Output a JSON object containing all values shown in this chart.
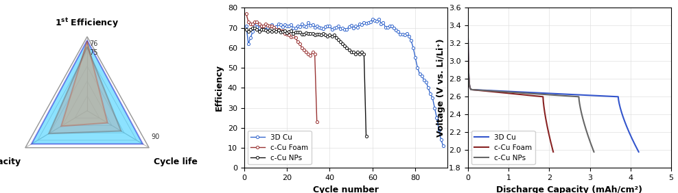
{
  "radar": {
    "color_3dcu": "#00bfff",
    "color_foam": "#f4a460",
    "color_nps": "#aaaaaa",
    "edge_3dcu": "#0000cc",
    "edge_foam": "#cc2200",
    "edge_nps": "#666666",
    "val_3dcu": [
      0.95,
      0.9,
      0.9
    ],
    "val_foam": [
      0.938,
      0.33,
      0.42
    ],
    "val_nps": [
      0.863,
      0.55,
      0.62
    ]
  },
  "cycle": {
    "xlabel": "Cycle number",
    "ylabel": "Efficiency",
    "xlim": [
      0,
      95
    ],
    "ylim": [
      0,
      80
    ],
    "yticks": [
      0,
      10,
      20,
      30,
      40,
      50,
      60,
      70,
      80
    ],
    "xticks": [
      0,
      20,
      40,
      60,
      80
    ],
    "color_3dcu": "#3366cc",
    "color_foam": "#993333",
    "color_nps": "#111111",
    "legend_labels": [
      "3D Cu",
      "c-Cu Foam",
      "c-Cu NPs"
    ]
  },
  "discharge": {
    "xlabel": "Discharge Capacity (mAh/cm²)",
    "ylabel": "Voltage (V vs. Li/Li⁺)",
    "xlim": [
      0,
      5
    ],
    "ylim": [
      1.8,
      3.6
    ],
    "yticks": [
      1.8,
      2.0,
      2.2,
      2.4,
      2.6,
      2.8,
      3.0,
      3.2,
      3.4,
      3.6
    ],
    "xticks": [
      0,
      1,
      2,
      3,
      4,
      5
    ],
    "color_3dcu": "#3355cc",
    "color_foam": "#882222",
    "color_nps": "#666666",
    "legend_labels": [
      "3D Cu",
      "c-Cu Foam",
      "c-Cu NPs"
    ]
  }
}
